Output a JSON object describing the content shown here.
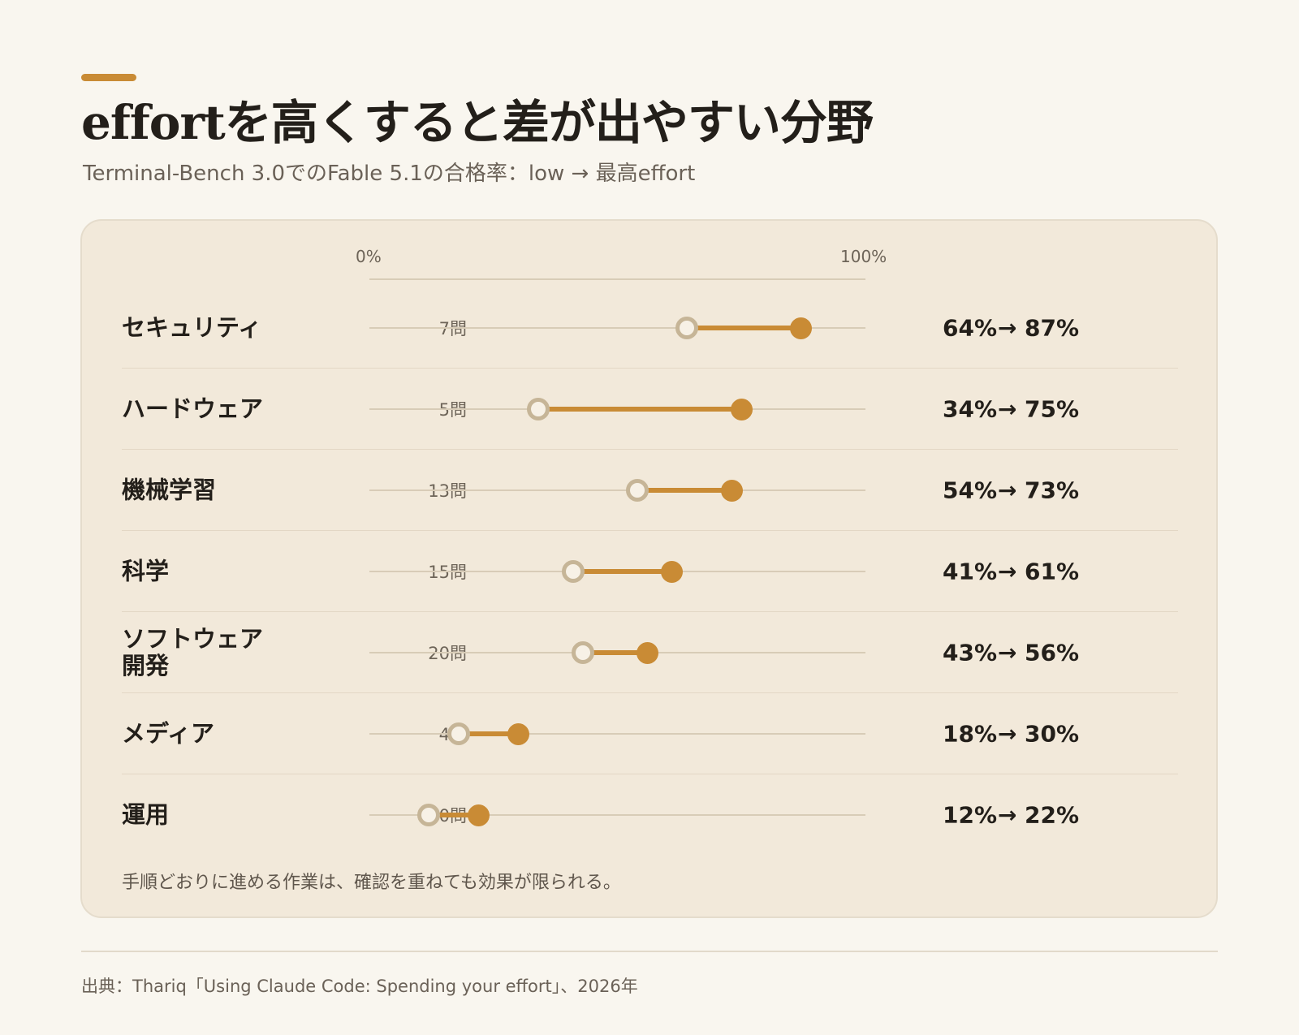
{
  "header": {
    "title": "effortを高くすると差が出やすい分野",
    "subtitle": "Terminal-Bench 3.0でのFable 5.1の合格率：low → 最高effort"
  },
  "note": "手順どおりに進める作業は、確認を重ねても効果が限られる。",
  "source": "出典：Thariq「Using Claude Code: Spending your effort」、2026年",
  "colors": {
    "accent": "#c98b35",
    "low_marker": "#c6b597",
    "background": "#f9f6ef",
    "card": "#f2e9da"
  },
  "chart_data": {
    "type": "dumbbell",
    "title": "effortを高くすると差が出やすい分野",
    "subtitle": "Terminal-Bench 3.0でのFable 5.1の合格率：low → 最高effort",
    "xlim": [
      0,
      100
    ],
    "x_ticks": [
      "0%",
      "100%"
    ],
    "arrow": "→",
    "unit": "%",
    "grid": false,
    "series": [
      {
        "name": "low"
      },
      {
        "name": "最高effort"
      }
    ],
    "rows": [
      {
        "category": "セキュリティ",
        "count": "7問",
        "low": 64,
        "high": 87,
        "low_label": "64%",
        "high_label": "87%"
      },
      {
        "category": "ハードウェア",
        "count": "5問",
        "low": 34,
        "high": 75,
        "low_label": "34%",
        "high_label": "75%"
      },
      {
        "category": "機械学習",
        "count": "13問",
        "low": 54,
        "high": 73,
        "low_label": "54%",
        "high_label": "73%"
      },
      {
        "category": "科学",
        "count": "15問",
        "low": 41,
        "high": 61,
        "low_label": "41%",
        "high_label": "61%"
      },
      {
        "category": "ソフトウェア\n開発",
        "count": "20問",
        "low": 43,
        "high": 56,
        "low_label": "43%",
        "high_label": "56%"
      },
      {
        "category": "メディア",
        "count": "4問",
        "low": 18,
        "high": 30,
        "low_label": "18%",
        "high_label": "30%"
      },
      {
        "category": "運用",
        "count": "10問",
        "low": 12,
        "high": 22,
        "low_label": "12%",
        "high_label": "22%"
      }
    ]
  }
}
